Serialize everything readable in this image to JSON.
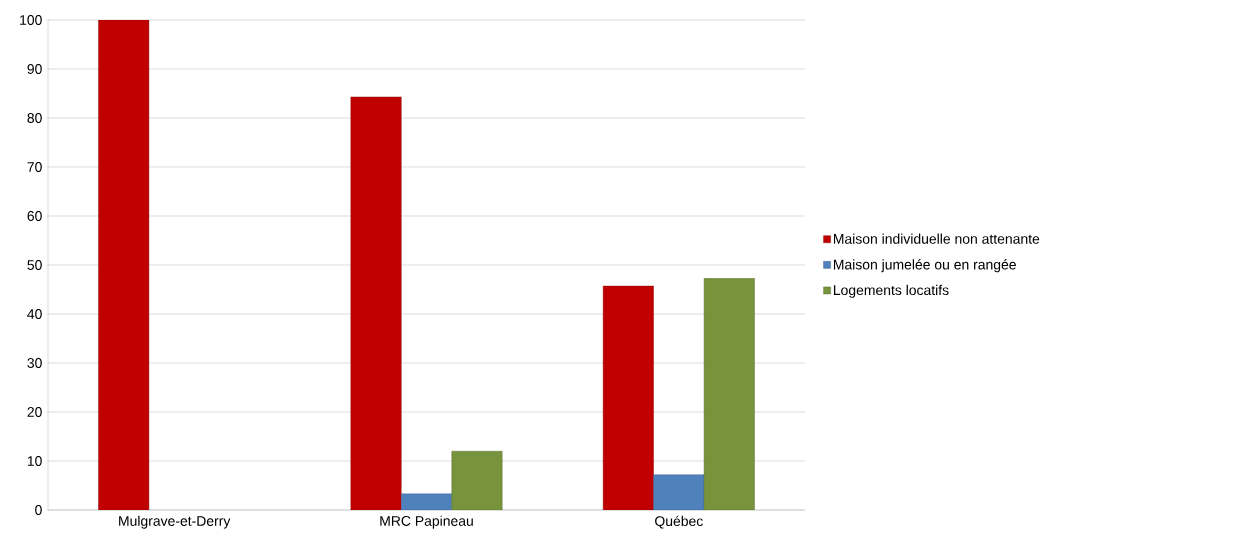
{
  "chart_data": {
    "type": "bar",
    "categories": [
      "Mulgrave-et-Derry",
      "MRC Papineau",
      "Québec"
    ],
    "series": [
      {
        "name": "Maison individuelle non attenante",
        "color": "#c00000",
        "values": [
          100,
          84.3,
          45.7
        ]
      },
      {
        "name": "Maison jumelée  ou en rangée",
        "color": "#4f81bd",
        "values": [
          null,
          3.3,
          7.2
        ]
      },
      {
        "name": "Logements locatifs",
        "color": "#77933c",
        "values": [
          null,
          12,
          47.3
        ]
      }
    ],
    "ylim": [
      0,
      100
    ],
    "yticks": [
      0,
      10,
      20,
      30,
      40,
      50,
      60,
      70,
      80,
      90,
      100
    ],
    "grid": "y",
    "legend": "right"
  }
}
